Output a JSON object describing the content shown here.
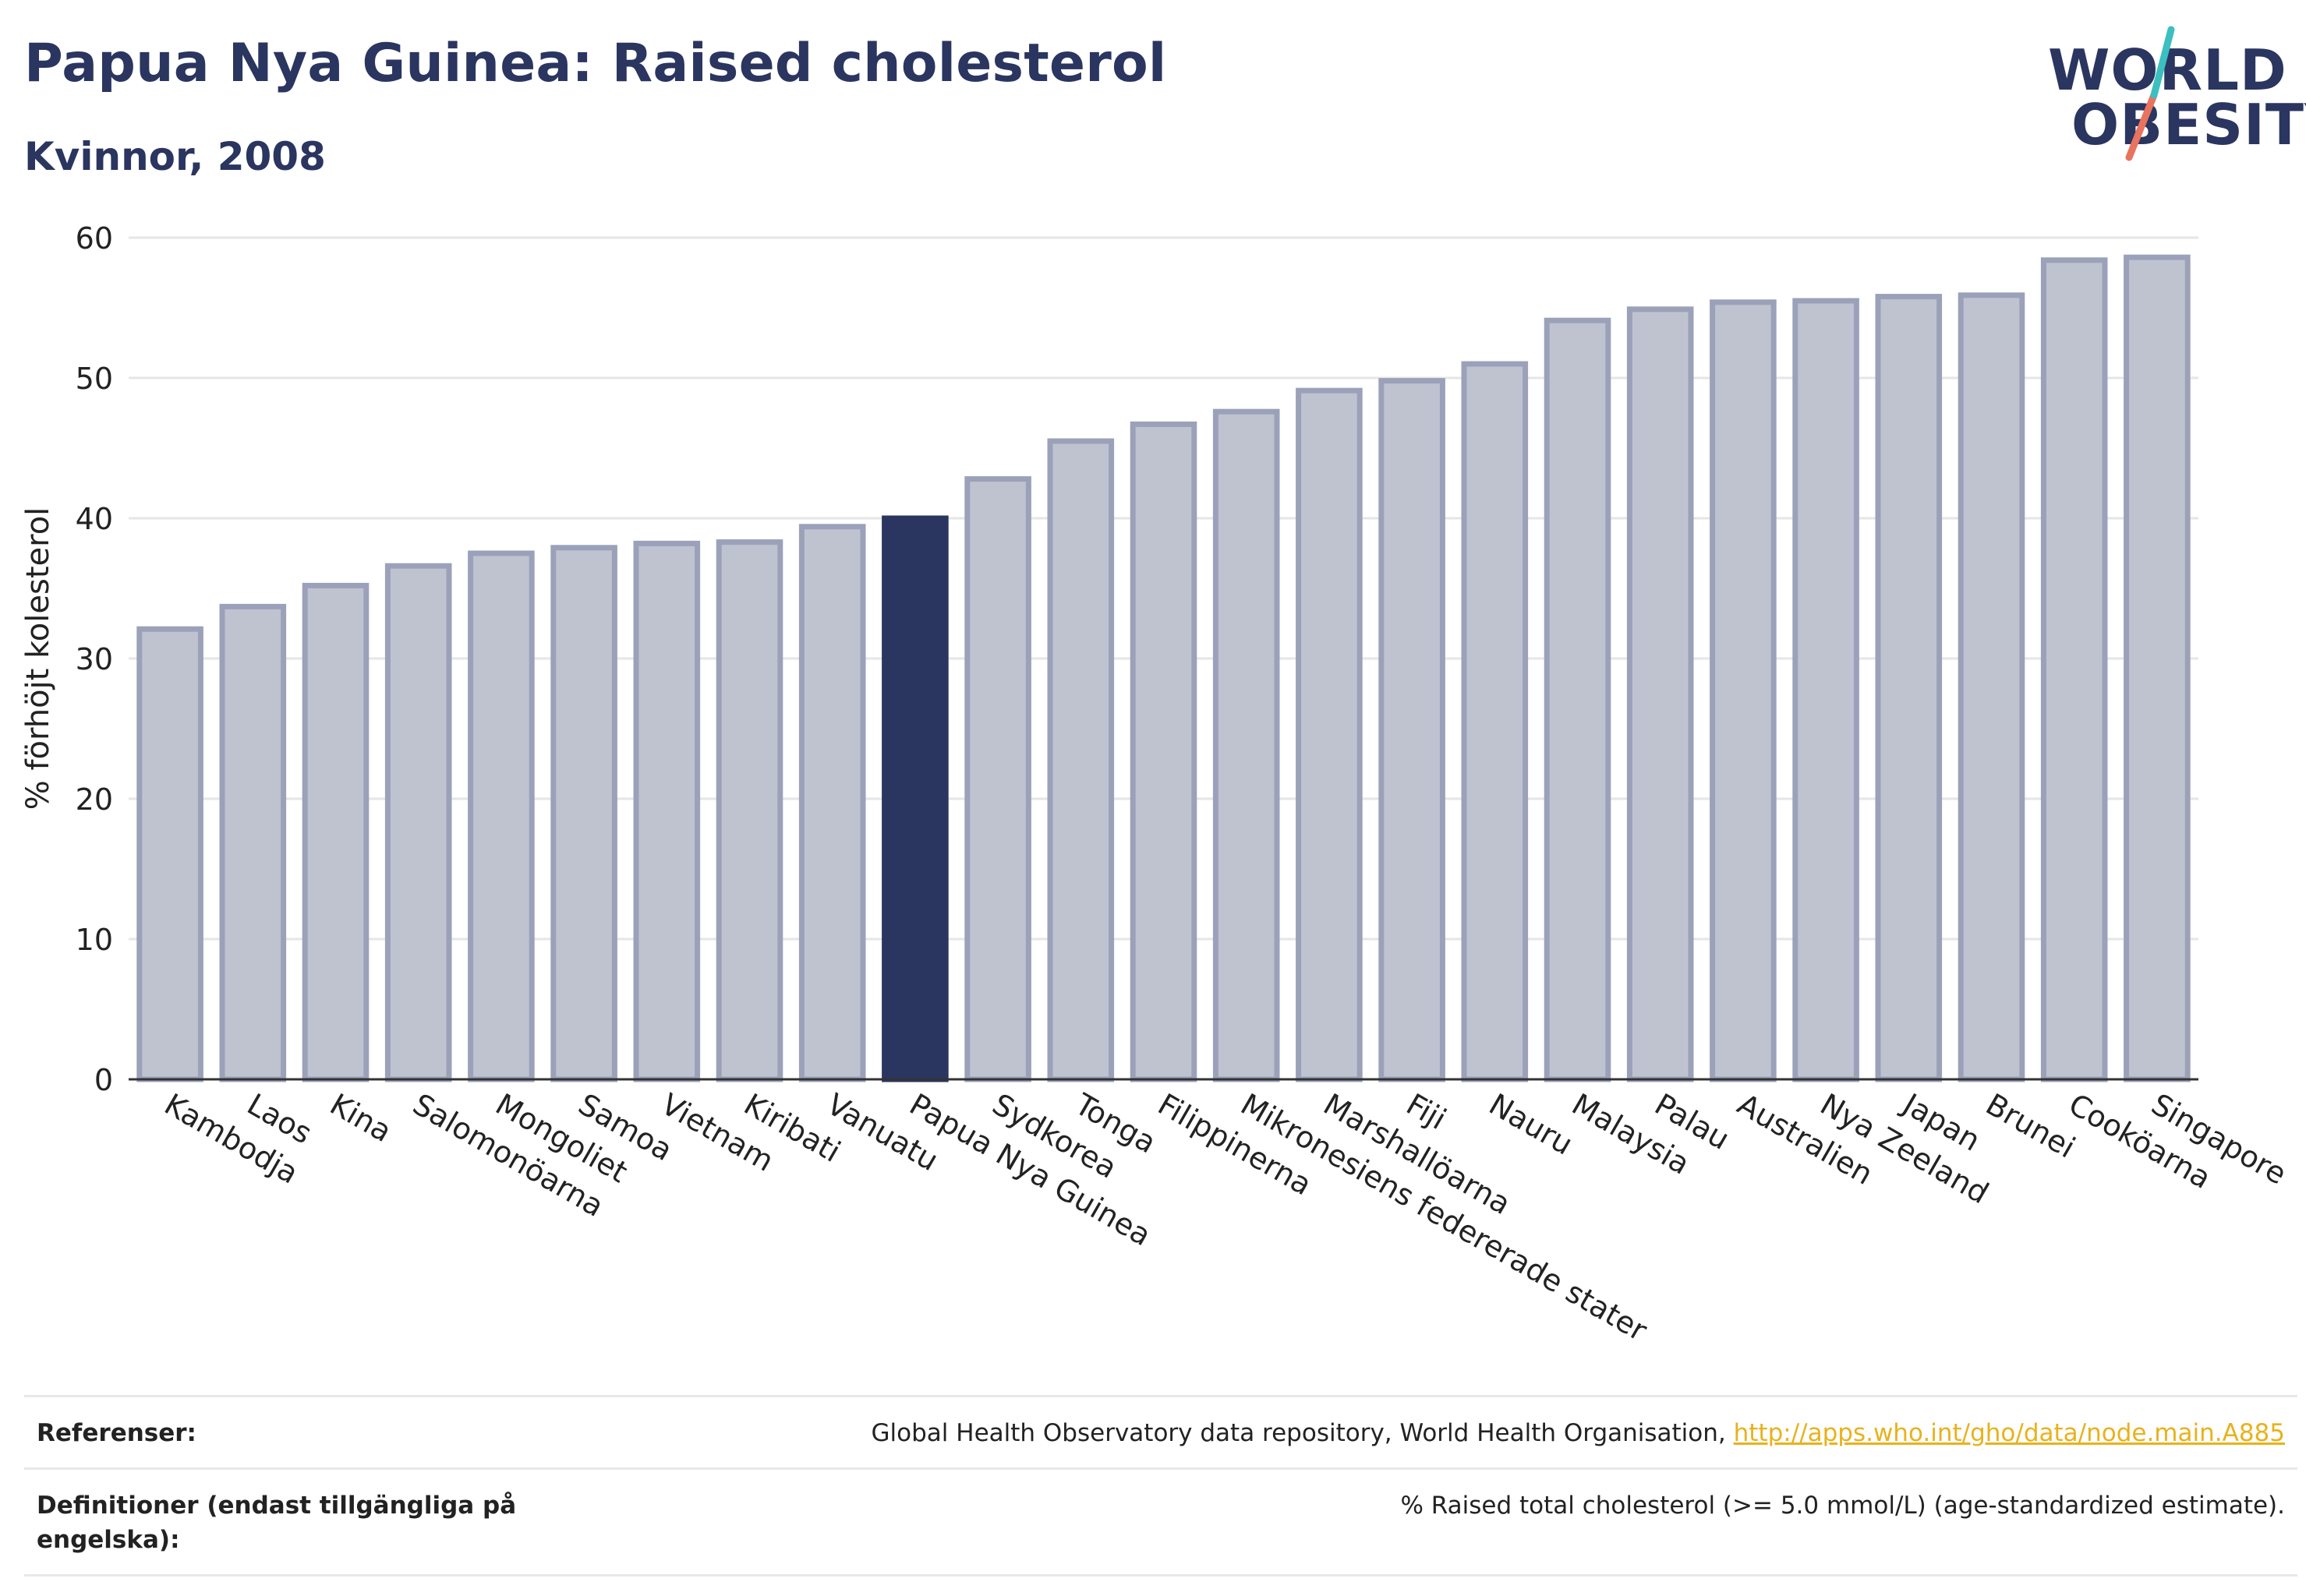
{
  "title": "Papua Nya Guinea: Raised cholesterol",
  "subtitle": "Kvinnor, 2008",
  "logo": {
    "line1": "WORLD",
    "line2": "OBESITY"
  },
  "colors": {
    "highlight_bar": "#2a3560",
    "bar_fill": "#bfc3d0",
    "bar_stroke": "#9ba1b9",
    "title_color": "#2a3560",
    "link_color": "#e8b21c"
  },
  "chart_data": {
    "type": "bar",
    "ylabel": "% förhöjt kolesterol",
    "ylim": [
      0,
      60
    ],
    "yticks": [
      0,
      10,
      20,
      30,
      40,
      50,
      60
    ],
    "grid": true,
    "highlight": "Papua Nya Guinea",
    "categories": [
      "Kambodja",
      "Laos",
      "Kina",
      "Salomonöarna",
      "Mongoliet",
      "Samoa",
      "Vietnam",
      "Kiribati",
      "Vanuatu",
      "Papua Nya Guinea",
      "Sydkorea",
      "Tonga",
      "Filippinerna",
      "Mikronesiens federerade stater",
      "Marshallöarna",
      "Fiji",
      "Nauru",
      "Malaysia",
      "Palau",
      "Australien",
      "Nya Zeeland",
      "Japan",
      "Brunei",
      "Cooköarna",
      "Singapore"
    ],
    "values": [
      32.1,
      33.7,
      35.2,
      36.6,
      37.5,
      37.9,
      38.2,
      38.3,
      39.4,
      40.0,
      42.8,
      45.5,
      46.7,
      47.6,
      49.1,
      49.8,
      51.0,
      54.1,
      54.9,
      55.4,
      55.5,
      55.8,
      55.9,
      58.4,
      58.6
    ]
  },
  "footer": {
    "references_label": "Referenser:",
    "references_text": "Global Health Observatory data repository, World Health Organisation, ",
    "references_link": "http://apps.who.int/gho/data/node.main.A885",
    "definitions_label": "Definitioner (endast tillgängliga på engelska):",
    "definitions_text": "% Raised total cholesterol (>= 5.0 mmol/L) (age-standardized estimate)."
  }
}
